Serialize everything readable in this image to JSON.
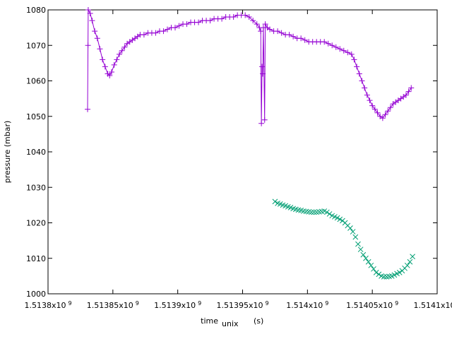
{
  "chart_data": {
    "type": "scatter",
    "xlabel": {
      "main": "time",
      "sub": "unix",
      "unit": "(s)"
    },
    "ylabel": "pressure (mbar)",
    "xlim": [
      1513800000,
      1514100000
    ],
    "ylim": [
      1000,
      1080
    ],
    "x_ticks": [
      {
        "value": 1513800000,
        "mantissa": "1.5138x10",
        "exp": "9"
      },
      {
        "value": 1513850000,
        "mantissa": "1.51385x10",
        "exp": "9"
      },
      {
        "value": 1513900000,
        "mantissa": "1.5139x10",
        "exp": "9"
      },
      {
        "value": 1513950000,
        "mantissa": "1.51395x10",
        "exp": "9"
      },
      {
        "value": 1514000000,
        "mantissa": "1.514x10",
        "exp": "9"
      },
      {
        "value": 1514050000,
        "mantissa": "1.51405x10",
        "exp": "9"
      },
      {
        "value": 1514100000,
        "mantissa": "1.5141x10",
        "exp": "9"
      }
    ],
    "y_ticks": [
      "1000",
      "1010",
      "1020",
      "1030",
      "1040",
      "1050",
      "1060",
      "1070",
      "1080"
    ],
    "grid": false,
    "series": [
      {
        "marker": "plus",
        "color": "#9400d3",
        "connected": true,
        "points": [
          [
            1513830500,
            1052
          ],
          [
            1513830800,
            1070
          ],
          [
            1513831000,
            1080
          ],
          [
            1513832500,
            1079
          ],
          [
            1513834000,
            1077
          ],
          [
            1513836000,
            1074
          ],
          [
            1513838000,
            1072
          ],
          [
            1513840000,
            1069
          ],
          [
            1513842000,
            1066
          ],
          [
            1513844000,
            1064
          ],
          [
            1513846000,
            1062
          ],
          [
            1513847500,
            1061.5
          ],
          [
            1513849000,
            1062.5
          ],
          [
            1513851000,
            1064.5
          ],
          [
            1513853000,
            1066
          ],
          [
            1513855000,
            1067.5
          ],
          [
            1513857000,
            1068.5
          ],
          [
            1513859000,
            1069.5
          ],
          [
            1513861000,
            1070.5
          ],
          [
            1513863000,
            1071
          ],
          [
            1513865000,
            1071.5
          ],
          [
            1513867000,
            1072
          ],
          [
            1513869000,
            1072.5
          ],
          [
            1513871000,
            1073
          ],
          [
            1513874000,
            1073
          ],
          [
            1513877000,
            1073.5
          ],
          [
            1513880000,
            1073.5
          ],
          [
            1513883000,
            1073.5
          ],
          [
            1513886000,
            1074
          ],
          [
            1513889000,
            1074
          ],
          [
            1513892000,
            1074.5
          ],
          [
            1513895000,
            1075
          ],
          [
            1513898000,
            1075
          ],
          [
            1513901000,
            1075.5
          ],
          [
            1513904000,
            1076
          ],
          [
            1513907000,
            1076
          ],
          [
            1513910000,
            1076.5
          ],
          [
            1513913000,
            1076.5
          ],
          [
            1513916000,
            1076.5
          ],
          [
            1513919000,
            1077
          ],
          [
            1513922000,
            1077
          ],
          [
            1513925000,
            1077
          ],
          [
            1513928000,
            1077.5
          ],
          [
            1513931000,
            1077.5
          ],
          [
            1513934000,
            1077.5
          ],
          [
            1513937000,
            1078
          ],
          [
            1513940000,
            1078
          ],
          [
            1513943000,
            1078
          ],
          [
            1513946000,
            1078.5
          ],
          [
            1513949000,
            1078.5
          ],
          [
            1513952000,
            1078.5
          ],
          [
            1513955000,
            1078
          ],
          [
            1513958000,
            1077
          ],
          [
            1513961000,
            1076
          ],
          [
            1513963000,
            1075
          ],
          [
            1513964000,
            1074
          ],
          [
            1513964500,
            1048
          ],
          [
            1513965000,
            1064
          ],
          [
            1513965500,
            1062
          ],
          [
            1513966000,
            1075
          ],
          [
            1513967000,
            1049
          ],
          [
            1513967500,
            1076
          ],
          [
            1513969000,
            1075
          ],
          [
            1513971000,
            1074.5
          ],
          [
            1513974000,
            1074
          ],
          [
            1513977000,
            1074
          ],
          [
            1513980000,
            1073.5
          ],
          [
            1513983000,
            1073
          ],
          [
            1513986000,
            1073
          ],
          [
            1513989000,
            1072.5
          ],
          [
            1513992000,
            1072
          ],
          [
            1513995000,
            1072
          ],
          [
            1513998000,
            1071.5
          ],
          [
            1514001000,
            1071
          ],
          [
            1514004000,
            1071
          ],
          [
            1514007000,
            1071
          ],
          [
            1514010000,
            1071
          ],
          [
            1514013000,
            1071
          ],
          [
            1514016000,
            1070.5
          ],
          [
            1514019000,
            1070
          ],
          [
            1514022000,
            1069.5
          ],
          [
            1514025000,
            1069
          ],
          [
            1514028000,
            1068.5
          ],
          [
            1514031000,
            1068
          ],
          [
            1514034000,
            1067.5
          ],
          [
            1514036000,
            1066
          ],
          [
            1514038000,
            1064
          ],
          [
            1514040000,
            1062
          ],
          [
            1514042000,
            1060
          ],
          [
            1514044000,
            1058
          ],
          [
            1514046000,
            1056
          ],
          [
            1514048000,
            1054.5
          ],
          [
            1514050000,
            1053
          ],
          [
            1514052000,
            1052
          ],
          [
            1514054000,
            1051
          ],
          [
            1514056000,
            1050
          ],
          [
            1514058000,
            1049.5
          ],
          [
            1514060000,
            1050.5
          ],
          [
            1514062000,
            1051.5
          ],
          [
            1514064000,
            1052.5
          ],
          [
            1514066000,
            1053.5
          ],
          [
            1514068000,
            1054
          ],
          [
            1514070000,
            1054.5
          ],
          [
            1514072000,
            1055
          ],
          [
            1514074000,
            1055.5
          ],
          [
            1514076000,
            1056
          ],
          [
            1514078000,
            1057
          ],
          [
            1514080000,
            1058
          ]
        ]
      },
      {
        "marker": "cross",
        "color": "#009e73",
        "connected": false,
        "points": [
          [
            1513975000,
            1026
          ],
          [
            1513977000,
            1025.5
          ],
          [
            1513979000,
            1025.3
          ],
          [
            1513981000,
            1025
          ],
          [
            1513983000,
            1024.8
          ],
          [
            1513985000,
            1024.5
          ],
          [
            1513987000,
            1024.3
          ],
          [
            1513989000,
            1024
          ],
          [
            1513991000,
            1023.8
          ],
          [
            1513993000,
            1023.6
          ],
          [
            1513995000,
            1023.5
          ],
          [
            1513997000,
            1023.3
          ],
          [
            1513999000,
            1023.2
          ],
          [
            1514001000,
            1023.1
          ],
          [
            1514003000,
            1023
          ],
          [
            1514005000,
            1023
          ],
          [
            1514007000,
            1023
          ],
          [
            1514009000,
            1023.1
          ],
          [
            1514011000,
            1023.2
          ],
          [
            1514013000,
            1023.3
          ],
          [
            1514015000,
            1023
          ],
          [
            1514017000,
            1022.5
          ],
          [
            1514019000,
            1022
          ],
          [
            1514021000,
            1021.7
          ],
          [
            1514023000,
            1021.4
          ],
          [
            1514025000,
            1021
          ],
          [
            1514027000,
            1020.6
          ],
          [
            1514029000,
            1020
          ],
          [
            1514031000,
            1019.2
          ],
          [
            1514033000,
            1018.5
          ],
          [
            1514035000,
            1017.5
          ],
          [
            1514037000,
            1016
          ],
          [
            1514039000,
            1014
          ],
          [
            1514041000,
            1012.5
          ],
          [
            1514043000,
            1011
          ],
          [
            1514045000,
            1010
          ],
          [
            1514047000,
            1009
          ],
          [
            1514049000,
            1008
          ],
          [
            1514051000,
            1007
          ],
          [
            1514053000,
            1006
          ],
          [
            1514055000,
            1005.5
          ],
          [
            1514057000,
            1005
          ],
          [
            1514059000,
            1004.8
          ],
          [
            1514061000,
            1004.8
          ],
          [
            1514063000,
            1004.9
          ],
          [
            1514065000,
            1005
          ],
          [
            1514067000,
            1005.3
          ],
          [
            1514069000,
            1005.7
          ],
          [
            1514071000,
            1006
          ],
          [
            1514073000,
            1006.5
          ],
          [
            1514075000,
            1007.2
          ],
          [
            1514077000,
            1008
          ],
          [
            1514079000,
            1009
          ],
          [
            1514081000,
            1010.5
          ]
        ]
      }
    ]
  }
}
